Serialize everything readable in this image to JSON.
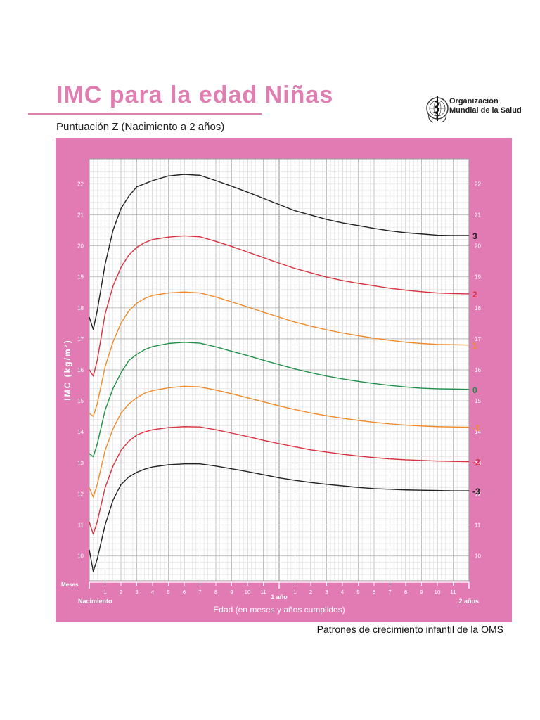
{
  "header": {
    "title": "IMC para la edad Niñas",
    "subtitle": "Puntuación Z (Nacimiento a 2 años)",
    "org_line1": "Organización",
    "org_line2": "Mundial de la Salud"
  },
  "footer": {
    "text": "Patrones de crecimiento infantil de la OMS"
  },
  "colors": {
    "background": "#e27bb4",
    "plot": "#ffffff",
    "sd3": "#222222",
    "sd2": "#d8303e",
    "sd1": "#ef8a2a",
    "median": "#1f8f48"
  },
  "chart_data": {
    "type": "line",
    "title": "IMC para la edad Niñas",
    "subtitle": "Puntuación Z (Nacimiento a 2 años)",
    "xlabel": "Edad (en meses y años cumplidos)",
    "ylabel": "IMC (kg/m²)",
    "x_unit_label": "Meses",
    "x_start_label": "Nacimiento",
    "x_year_label": "1 año",
    "x_end_label": "2 años",
    "x_range": [
      0,
      24
    ],
    "ylim": [
      9.2,
      22.8
    ],
    "y_ticks": [
      10,
      11,
      12,
      13,
      14,
      15,
      16,
      17,
      18,
      19,
      20,
      21,
      22
    ],
    "x_tick_labels": [
      "1",
      "2",
      "3",
      "4",
      "5",
      "6",
      "7",
      "8",
      "9",
      "10",
      "11",
      "",
      "1",
      "2",
      "3",
      "4",
      "5",
      "6",
      "7",
      "8",
      "9",
      "10",
      "11",
      ""
    ],
    "grid": true,
    "x": [
      0,
      0.25,
      0.5,
      1,
      1.5,
      2,
      2.5,
      3,
      3.5,
      4,
      5,
      6,
      7,
      8,
      9,
      10,
      11,
      12,
      13,
      14,
      15,
      16,
      17,
      18,
      19,
      20,
      21,
      22,
      23,
      24
    ],
    "series": [
      {
        "name": "3",
        "color": "#222222",
        "values": [
          17.7,
          17.3,
          17.9,
          19.4,
          20.5,
          21.2,
          21.6,
          21.9,
          22.0,
          22.1,
          22.25,
          22.3,
          22.27,
          22.1,
          21.92,
          21.73,
          21.53,
          21.33,
          21.13,
          20.99,
          20.85,
          20.74,
          20.65,
          20.56,
          20.48,
          20.42,
          20.38,
          20.34,
          20.33,
          20.33
        ]
      },
      {
        "name": "2",
        "color": "#d8303e",
        "values": [
          16.0,
          15.8,
          16.3,
          17.8,
          18.7,
          19.3,
          19.7,
          19.95,
          20.1,
          20.2,
          20.28,
          20.32,
          20.29,
          20.14,
          19.98,
          19.8,
          19.62,
          19.44,
          19.27,
          19.13,
          18.99,
          18.88,
          18.79,
          18.71,
          18.63,
          18.57,
          18.52,
          18.48,
          18.46,
          18.45
        ]
      },
      {
        "name": "1",
        "color": "#ef8a2a",
        "values": [
          14.6,
          14.5,
          14.9,
          16.1,
          16.9,
          17.5,
          17.9,
          18.15,
          18.3,
          18.4,
          18.48,
          18.51,
          18.48,
          18.35,
          18.19,
          18.03,
          17.86,
          17.7,
          17.54,
          17.41,
          17.29,
          17.19,
          17.1,
          17.02,
          16.95,
          16.89,
          16.85,
          16.82,
          16.81,
          16.8
        ]
      },
      {
        "name": "0",
        "color": "#1f8f48",
        "values": [
          13.3,
          13.2,
          13.6,
          14.7,
          15.4,
          15.9,
          16.3,
          16.5,
          16.65,
          16.75,
          16.85,
          16.89,
          16.86,
          16.74,
          16.6,
          16.46,
          16.31,
          16.17,
          16.03,
          15.91,
          15.8,
          15.71,
          15.63,
          15.56,
          15.5,
          15.45,
          15.41,
          15.39,
          15.38,
          15.37
        ]
      },
      {
        "name": "-1",
        "color": "#ef8a2a",
        "values": [
          12.2,
          11.9,
          12.3,
          13.4,
          14.1,
          14.6,
          14.9,
          15.1,
          15.25,
          15.33,
          15.42,
          15.47,
          15.45,
          15.35,
          15.23,
          15.1,
          14.97,
          14.84,
          14.72,
          14.61,
          14.52,
          14.44,
          14.37,
          14.31,
          14.26,
          14.22,
          14.19,
          14.17,
          14.16,
          14.15
        ]
      },
      {
        "name": "-2",
        "color": "#d8303e",
        "values": [
          11.1,
          10.7,
          11.1,
          12.2,
          12.9,
          13.4,
          13.7,
          13.9,
          14.0,
          14.07,
          14.14,
          14.17,
          14.16,
          14.07,
          13.96,
          13.85,
          13.73,
          13.62,
          13.52,
          13.42,
          13.35,
          13.28,
          13.22,
          13.17,
          13.13,
          13.1,
          13.08,
          13.06,
          13.05,
          13.04
        ]
      },
      {
        "name": "-3",
        "color": "#222222",
        "values": [
          10.2,
          9.5,
          9.9,
          11.0,
          11.8,
          12.3,
          12.55,
          12.7,
          12.8,
          12.87,
          12.94,
          12.97,
          12.97,
          12.9,
          12.81,
          12.72,
          12.62,
          12.52,
          12.44,
          12.37,
          12.31,
          12.26,
          12.21,
          12.17,
          12.15,
          12.13,
          12.12,
          12.11,
          12.1,
          12.1
        ]
      }
    ]
  }
}
